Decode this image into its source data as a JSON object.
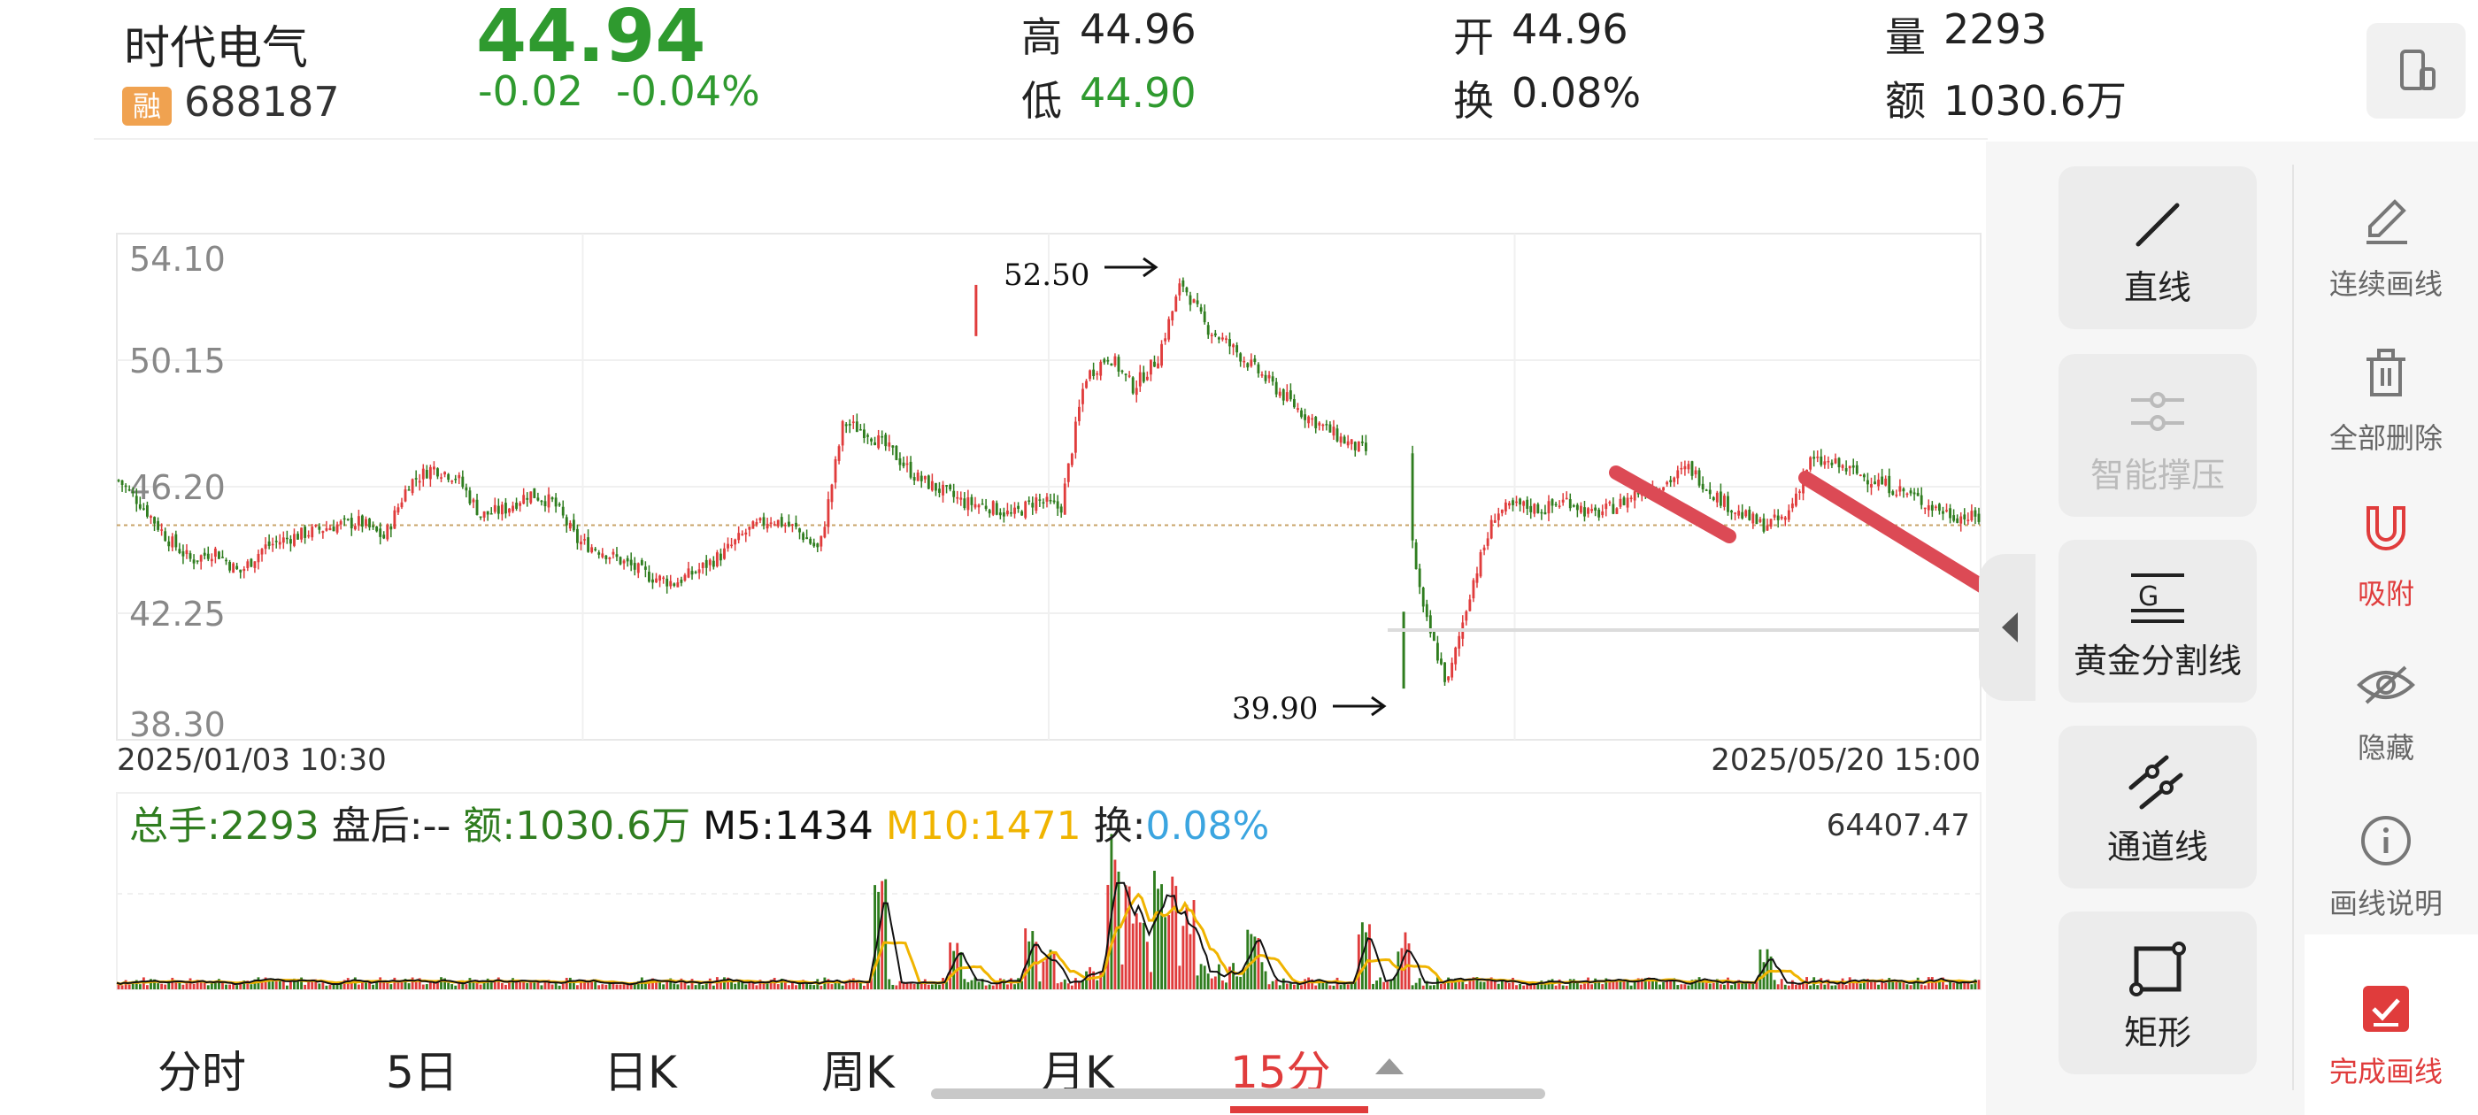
{
  "stock": {
    "name": "时代电气",
    "badge": "融",
    "code": "688187",
    "price": "44.94",
    "change": "-0.02",
    "change_pct": "-0.04%"
  },
  "quote": {
    "high_label": "高",
    "high": "44.96",
    "low_label": "低",
    "low": "44.90",
    "open_label": "开",
    "open": "44.96",
    "turnover_label": "换",
    "turnover": "0.08%",
    "volume_label": "量",
    "volume": "2293",
    "amount_label": "额",
    "amount": "1030.6万"
  },
  "chart": {
    "y_ticks": [
      "54.10",
      "50.15",
      "46.20",
      "42.25",
      "38.30"
    ],
    "high_marker": "52.50",
    "low_marker": "39.90",
    "start_time": "2025/01/03 10:30",
    "end_time": "2025/05/20 15:00",
    "volume_line": {
      "total": "总手:2293",
      "after": "盘后:--",
      "amount": "额:1030.6万",
      "m5": "M5:1434",
      "m10": "M10:1471",
      "turn_label": "换:",
      "turn_value": "0.08%",
      "max": "64407.47"
    },
    "colors": {
      "up": "#e03c3c",
      "down": "#2f7d1f",
      "m5": "#111111",
      "m10": "#f0b400",
      "turn": "#3ba5e0"
    }
  },
  "chart_data": {
    "type": "candlestick",
    "x_start": "2025/01/03 10:30",
    "x_end": "2025/05/20 15:00",
    "ylim": [
      38.3,
      54.1
    ],
    "reference_line": 45.0,
    "high": 52.5,
    "low": 39.9,
    "close_path": [
      46.4,
      45.6,
      44.6,
      43.9,
      44.2,
      43.5,
      44.3,
      44.6,
      44.8,
      45.0,
      45.1,
      44.6,
      46.3,
      46.8,
      46.5,
      45.3,
      45.5,
      46.0,
      45.7,
      44.5,
      44.2,
      43.8,
      43.4,
      43.2,
      43.6,
      44.1,
      44.8,
      45.2,
      44.9,
      44.2,
      48.2,
      47.9,
      47.3,
      46.5,
      46.1,
      45.7,
      45.6,
      45.3,
      45.8,
      45.5,
      49.6,
      50.3,
      49.3,
      50.2,
      52.6,
      51.2,
      50.6,
      49.9,
      49.2,
      48.5,
      48.0,
      47.5,
      47.2,
      47.0,
      42.3,
      40.0,
      43.1,
      45.4,
      45.6,
      45.5,
      45.8,
      45.3,
      45.6,
      46.1,
      46.3,
      46.8,
      46.0,
      45.4,
      45.0,
      45.2,
      47.0,
      46.9,
      46.6,
      46.3,
      46.0,
      45.6,
      45.3,
      45.2
    ]
  },
  "drawings": {
    "line_color": "#dc4a55"
  },
  "tabs": [
    {
      "label": "分时"
    },
    {
      "label": "5日"
    },
    {
      "label": "日K"
    },
    {
      "label": "周K"
    },
    {
      "label": "月K"
    },
    {
      "label": "15分"
    }
  ],
  "tools": [
    {
      "label": "直线",
      "icon": "line-icon"
    },
    {
      "label": "智能撑压",
      "icon": "smart-support-icon"
    },
    {
      "label": "黄金分割线",
      "icon": "golden-section-icon"
    },
    {
      "label": "通道线",
      "icon": "channel-icon"
    },
    {
      "label": "矩形",
      "icon": "rectangle-icon"
    }
  ],
  "side": [
    {
      "label": "连续画线",
      "icon": "pen-icon"
    },
    {
      "label": "全部删除",
      "icon": "trash-icon"
    },
    {
      "label": "吸附",
      "icon": "magnet-icon"
    },
    {
      "label": "隐藏",
      "icon": "eye-icon"
    },
    {
      "label": "画线说明",
      "icon": "info-icon"
    },
    {
      "label": "完成画线",
      "icon": "check-icon"
    }
  ]
}
